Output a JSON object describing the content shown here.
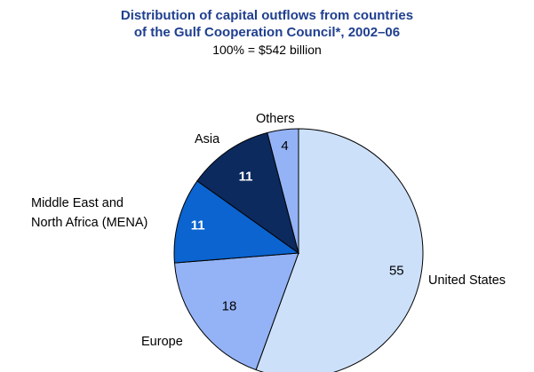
{
  "chart_data": {
    "type": "pie",
    "title_line1": "Distribution of capital outflows from countries",
    "title_line2": "of the Gulf Cooperation Council*, 2002–06",
    "subtitle": "100% = $542 billion",
    "slices": [
      {
        "label": "United States",
        "value": 55,
        "color": "#cce0fa",
        "value_color": "#000000",
        "bold": false
      },
      {
        "label": "Europe",
        "value": 18,
        "color": "#94b3f7",
        "value_color": "#000000",
        "bold": false
      },
      {
        "label_lines": [
          "Middle East and",
          "North Africa (MENA)"
        ],
        "value": 11,
        "color": "#0b64d0",
        "value_color": "#ffffff",
        "bold": true
      },
      {
        "label": "Asia",
        "value": 11,
        "color": "#0c2a5e",
        "value_color": "#ffffff",
        "bold": true
      },
      {
        "label": "Others",
        "value": 4,
        "color": "#94b3f7",
        "value_color": "#000000",
        "bold": false
      }
    ]
  }
}
